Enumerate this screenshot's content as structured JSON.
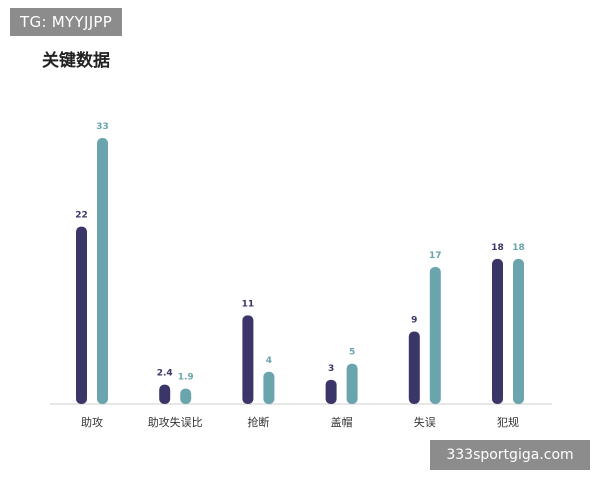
{
  "watermark_top": "TG: MYYJJPP",
  "watermark_bottom": "333sportgiga.com",
  "colors": {
    "series_a": "#3a3668",
    "series_b": "#6aa5ad",
    "axis": "#cfcfcf"
  },
  "chart_data": {
    "type": "bar",
    "title": "关键数据",
    "categories": [
      "助攻",
      "助攻失误比",
      "抢断",
      "盖帽",
      "失误",
      "犯规"
    ],
    "series": [
      {
        "values": [
          22,
          2.4,
          11,
          3,
          9,
          18
        ]
      },
      {
        "values": [
          33,
          1.9,
          4,
          5,
          17,
          18
        ]
      }
    ],
    "value_labels": [
      [
        "22",
        "2.4",
        "11",
        "3",
        "9",
        "18"
      ],
      [
        "33",
        "1.9",
        "4",
        "5",
        "17",
        "18"
      ]
    ],
    "ylim": [
      0,
      33
    ],
    "xlabel": "",
    "ylabel": "",
    "grid": false,
    "legend": "none"
  }
}
